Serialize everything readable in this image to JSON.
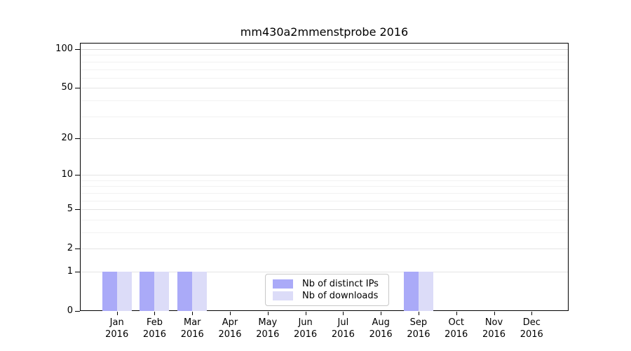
{
  "chart_data": {
    "type": "bar",
    "title": "mm430a2mmenstprobe 2016",
    "categories": [
      "Jan",
      "Feb",
      "Mar",
      "Apr",
      "May",
      "Jun",
      "Jul",
      "Aug",
      "Sep",
      "Oct",
      "Nov",
      "Dec"
    ],
    "category_year": "2016",
    "series": [
      {
        "name": "Nb of distinct IPs",
        "color": "#aaaaf8",
        "values": [
          1,
          1,
          1,
          0,
          0,
          0,
          0,
          0,
          1,
          0,
          0,
          0
        ]
      },
      {
        "name": "Nb of downloads",
        "color": "#dcdcf8",
        "values": [
          1,
          1,
          1,
          0,
          0,
          0,
          0,
          0,
          1,
          0,
          0,
          0
        ]
      }
    ],
    "y_axis": {
      "scale": "log1p",
      "major_ticks": [
        0,
        1,
        2,
        5,
        10,
        20,
        50,
        100
      ],
      "minor_ticks": [
        3,
        4,
        6,
        7,
        8,
        9,
        30,
        40,
        60,
        70,
        80,
        90
      ],
      "top_value": 112,
      "bottom_value": 0
    },
    "grid": "horizontal",
    "legend": {
      "position": "lower center"
    }
  }
}
